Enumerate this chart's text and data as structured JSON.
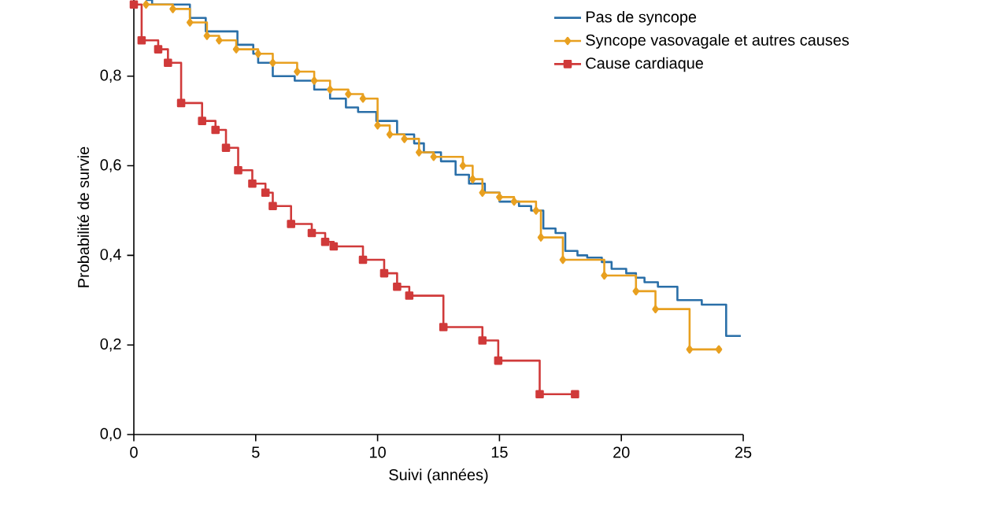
{
  "chart_data": {
    "type": "step",
    "xlabel": "Suivi (années)",
    "ylabel": "Probabilité de survie",
    "xlim": [
      0,
      25
    ],
    "ylim": [
      0,
      0.97
    ],
    "xticks": [
      0,
      5,
      10,
      15,
      20,
      25
    ],
    "yticks": [
      {
        "value": 0,
        "label": "0,0"
      },
      {
        "value": 0.2,
        "label": "0,2"
      },
      {
        "value": 0.4,
        "label": "0,4"
      },
      {
        "value": 0.6,
        "label": "0,6"
      },
      {
        "value": 0.8,
        "label": "0,8"
      }
    ],
    "grid": false,
    "legend": "top right",
    "series": [
      {
        "name": "Pas de syncope",
        "color": "#2a6fa8",
        "marker": "none",
        "x": [
          0.5,
          0.75,
          2.3,
          2.95,
          4.25,
          4.9,
          5.1,
          5.7,
          6.6,
          7.4,
          8.05,
          8.7,
          9.2,
          9.95,
          10.8,
          11.5,
          11.9,
          12.6,
          13.2,
          13.75,
          14.4,
          15.0,
          15.8,
          16.3,
          16.8,
          17.3,
          17.7,
          18.2,
          18.6,
          19.2,
          19.6,
          20.2,
          20.6,
          20.95,
          21.5,
          22.3,
          23.3,
          24.3,
          24.9
        ],
        "values": [
          0.97,
          0.96,
          0.93,
          0.9,
          0.87,
          0.85,
          0.83,
          0.8,
          0.79,
          0.77,
          0.75,
          0.73,
          0.72,
          0.7,
          0.67,
          0.65,
          0.63,
          0.61,
          0.58,
          0.56,
          0.54,
          0.52,
          0.51,
          0.5,
          0.46,
          0.45,
          0.41,
          0.4,
          0.395,
          0.385,
          0.37,
          0.36,
          0.35,
          0.34,
          0.33,
          0.3,
          0.29,
          0.22,
          0.22
        ]
      },
      {
        "name": "Syncope vasovagale et autres causes",
        "color": "#e8a020",
        "marker": "diamond",
        "x": [
          0.5,
          1.6,
          2.3,
          3.0,
          3.5,
          4.2,
          5.1,
          5.7,
          6.7,
          7.4,
          8.05,
          8.8,
          9.4,
          10.0,
          10.5,
          11.1,
          11.7,
          12.3,
          13.5,
          13.9,
          14.3,
          15.0,
          15.6,
          16.5,
          16.7,
          17.6,
          19.3,
          20.6,
          21.4,
          22.8,
          24.0
        ],
        "values": [
          0.96,
          0.95,
          0.92,
          0.89,
          0.88,
          0.86,
          0.85,
          0.83,
          0.81,
          0.79,
          0.77,
          0.76,
          0.75,
          0.69,
          0.67,
          0.66,
          0.63,
          0.62,
          0.6,
          0.57,
          0.54,
          0.53,
          0.52,
          0.5,
          0.44,
          0.39,
          0.355,
          0.32,
          0.28,
          0.19,
          0.19
        ]
      },
      {
        "name": "Cause cardiaque",
        "color": "#d03a3a",
        "marker": "square",
        "x": [
          0,
          0.32,
          1.0,
          1.4,
          1.94,
          2.8,
          3.35,
          3.78,
          4.28,
          4.86,
          5.4,
          5.7,
          6.45,
          7.3,
          7.85,
          8.2,
          9.4,
          10.27,
          10.8,
          11.3,
          12.7,
          14.3,
          14.95,
          16.65,
          18.1
        ],
        "values": [
          0.96,
          0.88,
          0.86,
          0.83,
          0.74,
          0.7,
          0.68,
          0.64,
          0.59,
          0.56,
          0.54,
          0.51,
          0.47,
          0.45,
          0.43,
          0.42,
          0.39,
          0.36,
          0.33,
          0.31,
          0.24,
          0.21,
          0.165,
          0.09,
          0.09
        ]
      }
    ]
  }
}
